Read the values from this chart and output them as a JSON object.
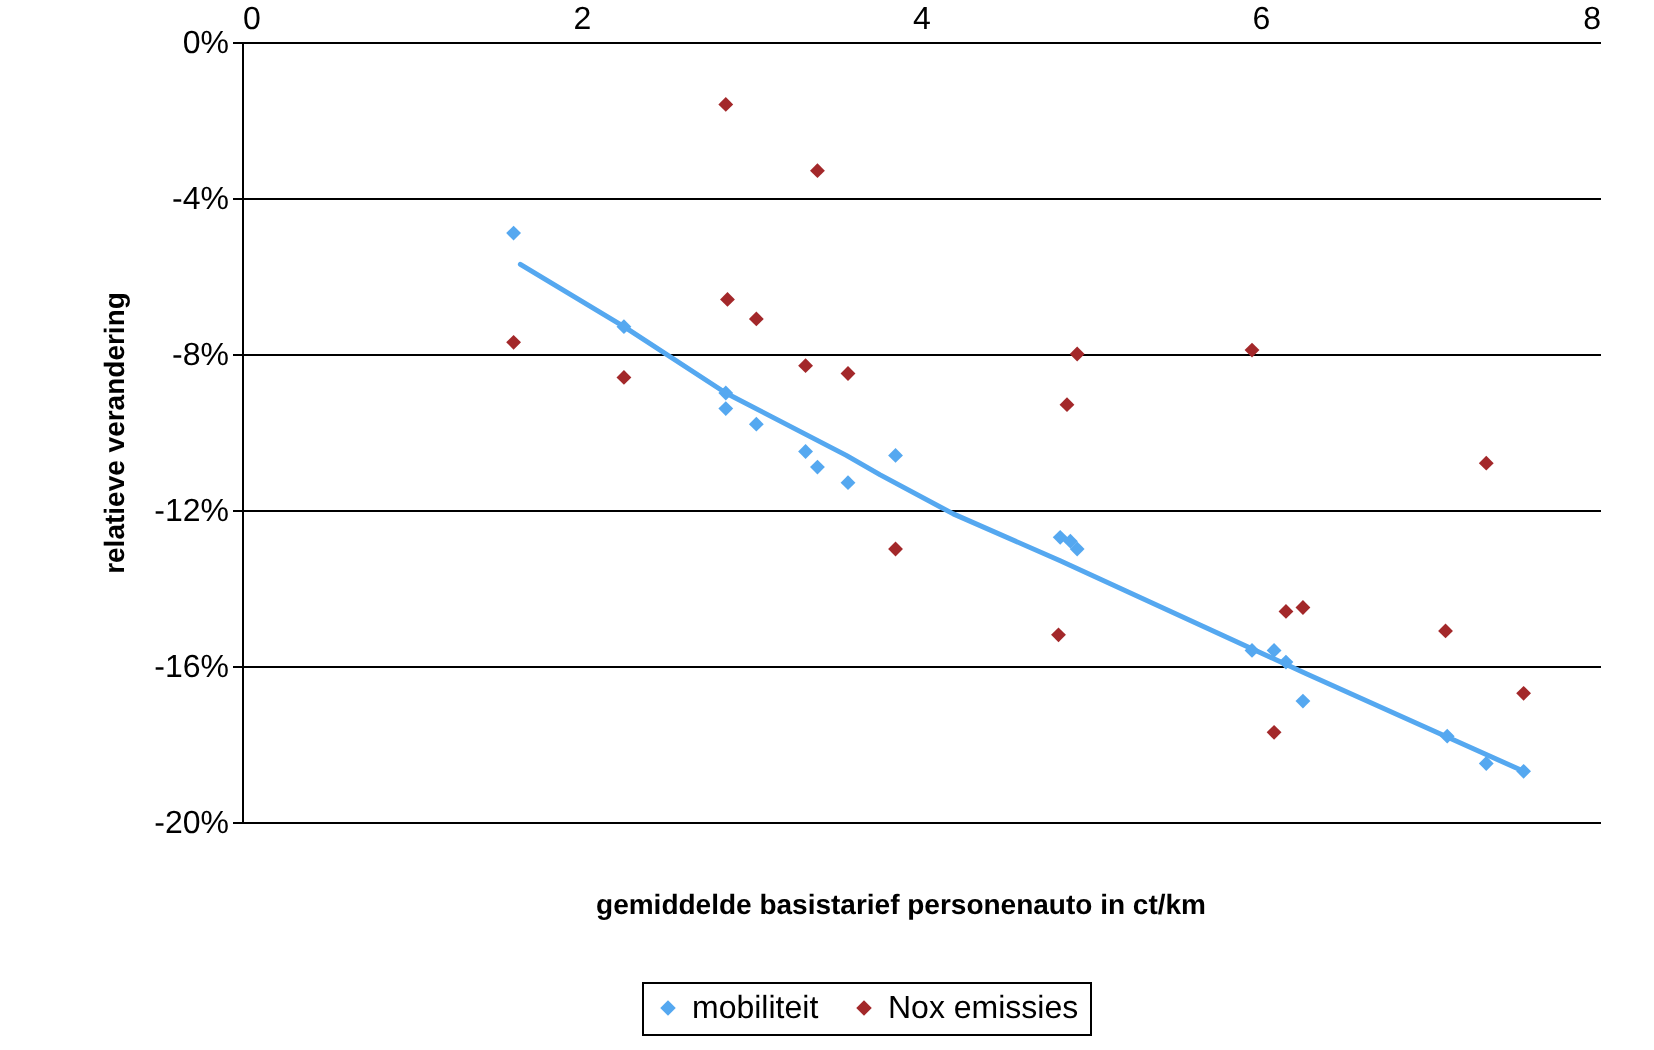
{
  "chart_data": {
    "type": "scatter",
    "xlabel": "gemiddelde basistarief personenauto in ct/km",
    "ylabel": "relatieve verandering",
    "xlim": [
      0,
      8
    ],
    "xticks": [
      0,
      2,
      4,
      6,
      8
    ],
    "ylim": [
      -20,
      0
    ],
    "yticks": [
      {
        "value": -20,
        "label": "-20%"
      },
      {
        "value": -16,
        "label": "-16%"
      },
      {
        "value": -12,
        "label": "-12%"
      },
      {
        "value": -8,
        "label": "-8%"
      },
      {
        "value": -4,
        "label": "-4%"
      },
      {
        "value": 0,
        "label": "0%"
      }
    ],
    "grid": "y",
    "legend": "bottom",
    "marker": "diamond",
    "series": [
      {
        "name": "mobiliteit",
        "color": "#55a8f0",
        "x": [
          1.6,
          2.25,
          2.85,
          2.85,
          3.03,
          3.32,
          3.39,
          3.57,
          3.85,
          4.82,
          4.88,
          4.92,
          5.95,
          6.08,
          6.15,
          6.25,
          7.1,
          7.33,
          7.55
        ],
        "values": [
          -4.9,
          -7.3,
          -9.0,
          -9.4,
          -9.8,
          -10.5,
          -10.9,
          -11.3,
          -10.6,
          -12.7,
          -12.8,
          -13.0,
          -15.6,
          -15.6,
          -15.9,
          -16.9,
          -17.8,
          -18.5,
          -18.7
        ]
      },
      {
        "name": "Nox emissies",
        "color": "#a3282a",
        "x": [
          1.6,
          2.25,
          2.85,
          2.86,
          3.03,
          3.32,
          3.39,
          3.57,
          3.85,
          4.81,
          4.86,
          4.92,
          5.95,
          6.08,
          6.15,
          6.25,
          7.09,
          7.33,
          7.55
        ],
        "values": [
          -7.7,
          -8.6,
          -1.6,
          -6.6,
          -7.1,
          -8.3,
          -3.3,
          -8.5,
          -13.0,
          -15.2,
          -9.3,
          -8.0,
          -7.9,
          -17.7,
          -14.6,
          -14.5,
          -15.1,
          -10.8,
          -16.7
        ]
      },
      {
        "type": "line",
        "marker": "none",
        "color": "#55a8f0",
        "line_style": "solid",
        "x": [
          1.64,
          2.25,
          2.85,
          3.56,
          3.76,
          4.19,
          4.82,
          6.27,
          7.09,
          7.55
        ],
        "values": [
          -5.7,
          -7.3,
          -9.0,
          -10.6,
          -11.1,
          -12.1,
          -13.3,
          -16.2,
          -17.8,
          -18.7
        ]
      }
    ]
  }
}
